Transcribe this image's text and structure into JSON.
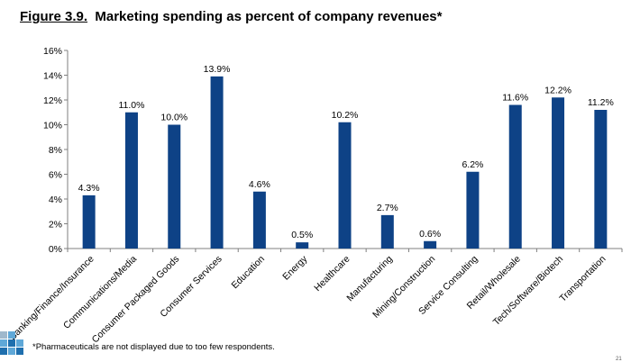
{
  "figure": {
    "number_label": "Figure 3.9.",
    "title_text": "Marketing spending as percent of company revenues*"
  },
  "chart_data": {
    "type": "bar",
    "title": "Figure 3.9. Marketing spending as percent of company revenues*",
    "xlabel": "",
    "ylabel": "",
    "categories": [
      "Banking/Finance/Insurance",
      "Communications/Media",
      "Consumer Packaged Goods",
      "Consumer Services",
      "Education",
      "Energy",
      "Healthcare",
      "Manufacturing",
      "Mining/Construction",
      "Service Consulting",
      "Retail/Wholesale",
      "Tech/Software/Biotech",
      "Transportation"
    ],
    "values": [
      4.3,
      11.0,
      10.0,
      13.9,
      4.6,
      0.5,
      10.2,
      2.7,
      0.6,
      6.2,
      11.6,
      12.2,
      11.2
    ],
    "data_labels": [
      "4.3%",
      "11.0%",
      "10.0%",
      "13.9%",
      "4.6%",
      "0.5%",
      "10.2%",
      "2.7%",
      "0.6%",
      "6.2%",
      "11.6%",
      "12.2%",
      "11.2%"
    ],
    "ylim": [
      0,
      16
    ],
    "yticks": [
      0,
      2,
      4,
      6,
      8,
      10,
      12,
      14,
      16
    ],
    "ytick_labels": [
      "0%",
      "2%",
      "4%",
      "6%",
      "8%",
      "10%",
      "12%",
      "14%",
      "16%"
    ],
    "grid": false,
    "legend": "none",
    "bar_color": "#0e4286"
  },
  "footnote": "*Pharmaceuticals are not displayed due to too few respondents.",
  "page_marker": "21",
  "colors": {
    "bar": "#0e4286",
    "logo_light": "#5fa8d8",
    "logo_dark": "#1f6fae",
    "logo_gray": "#9fb8cc"
  }
}
